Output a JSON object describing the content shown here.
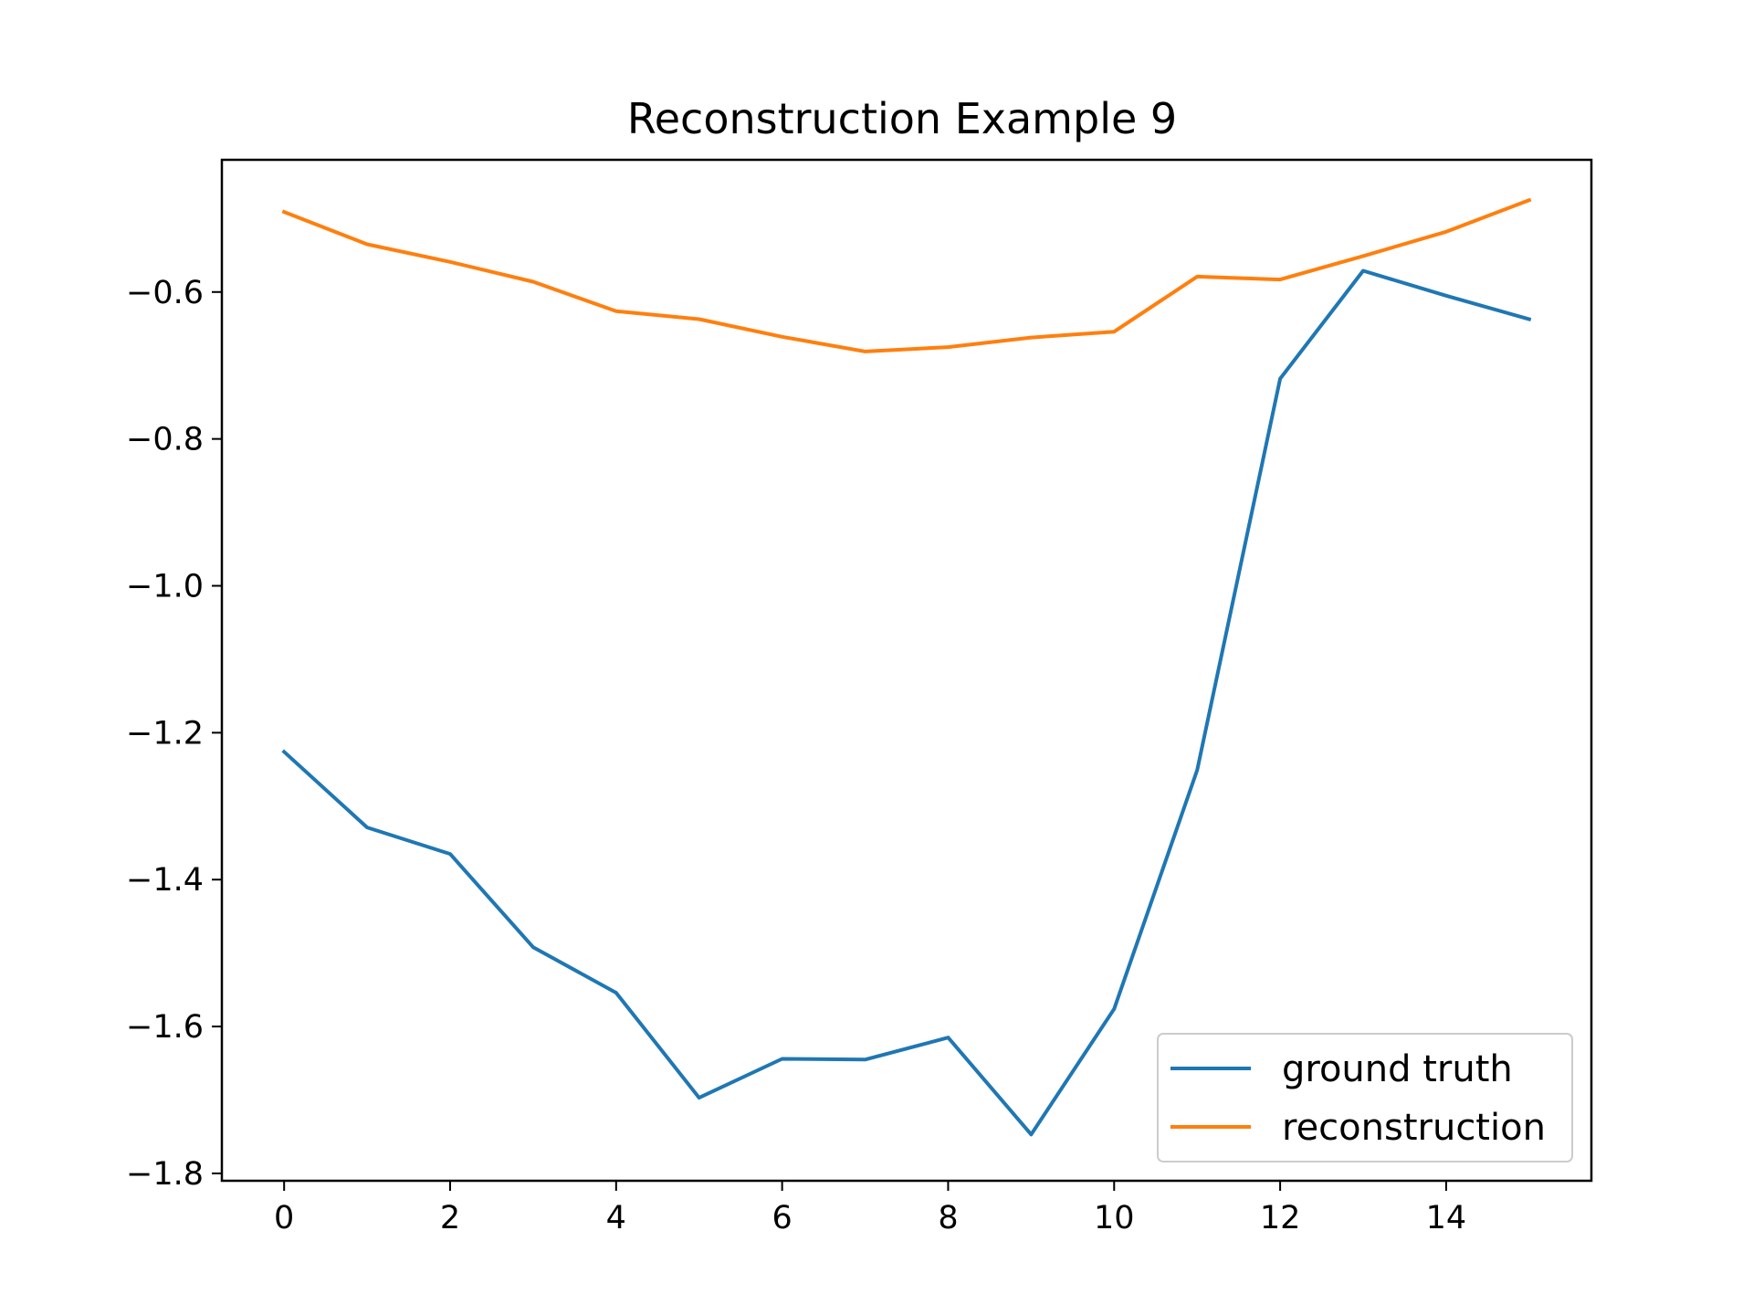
{
  "chart_data": {
    "type": "line",
    "title": "Reconstruction Example 9",
    "xlabel": "",
    "ylabel": "",
    "xlim": [
      -0.75,
      15.75
    ],
    "ylim": [
      -1.81,
      -0.42
    ],
    "x_ticks": [
      0,
      2,
      4,
      6,
      8,
      10,
      12,
      14
    ],
    "x_tick_labels": [
      "0",
      "2",
      "4",
      "6",
      "8",
      "10",
      "12",
      "14"
    ],
    "y_ticks": [
      -0.6,
      -0.8,
      -1.0,
      -1.2,
      -1.4,
      -1.6,
      -1.8
    ],
    "y_tick_labels": [
      "−0.6",
      "−0.8",
      "−1.0",
      "−1.2",
      "−1.4",
      "−1.6",
      "−1.8"
    ],
    "grid": false,
    "legend_position": "lower-right",
    "x": [
      0,
      1,
      2,
      3,
      4,
      5,
      6,
      7,
      8,
      9,
      10,
      11,
      12,
      13,
      14,
      15
    ],
    "series": [
      {
        "name": "ground truth",
        "color": "#1f77b4",
        "values": [
          -1.226,
          -1.329,
          -1.365,
          -1.492,
          -1.554,
          -1.697,
          -1.644,
          -1.645,
          -1.615,
          -1.747,
          -1.576,
          -1.251,
          -0.718,
          -0.571,
          -0.605,
          -0.637
        ]
      },
      {
        "name": "reconstruction",
        "color": "#ff7f0e",
        "values": [
          -0.491,
          -0.535,
          -0.559,
          -0.586,
          -0.626,
          -0.637,
          -0.661,
          -0.681,
          -0.675,
          -0.662,
          -0.654,
          -0.579,
          -0.583,
          -0.551,
          -0.518,
          -0.475
        ]
      }
    ]
  }
}
